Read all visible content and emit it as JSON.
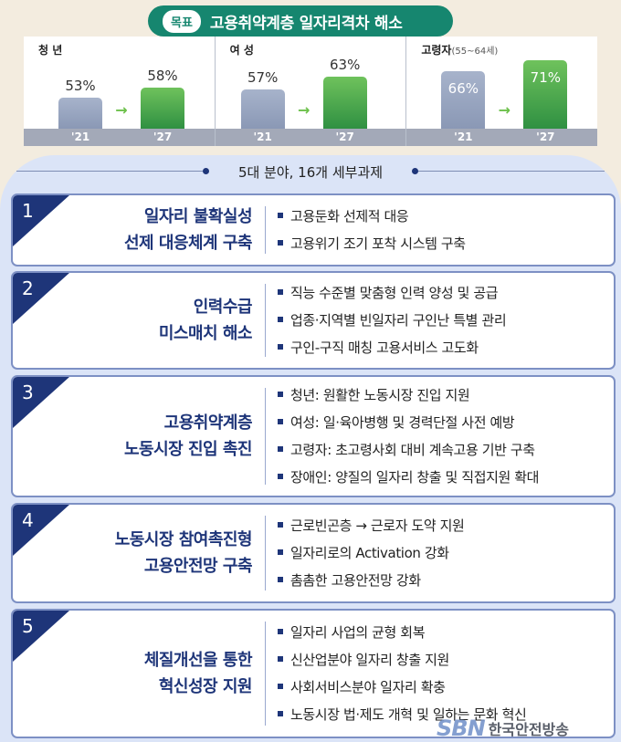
{
  "goal": {
    "tag": "목표",
    "title": "고용취약계층 일자리격차 해소"
  },
  "chart_data": [
    {
      "type": "bar",
      "title": "청 년",
      "title_sub": "",
      "categories": [
        "'21",
        "'27"
      ],
      "values": [
        53,
        58
      ],
      "value_labels": [
        "53%",
        "58%"
      ],
      "ylim": [
        0,
        100
      ],
      "colors": [
        "#97a4c0",
        "#45a34a"
      ]
    },
    {
      "type": "bar",
      "title": "여 성",
      "title_sub": "",
      "categories": [
        "'21",
        "'27"
      ],
      "values": [
        57,
        63
      ],
      "value_labels": [
        "57%",
        "63%"
      ],
      "ylim": [
        0,
        100
      ],
      "colors": [
        "#97a4c0",
        "#45a34a"
      ]
    },
    {
      "type": "bar",
      "title": "고령자",
      "title_sub": "(55~64세)",
      "categories": [
        "'21",
        "'27"
      ],
      "values": [
        66,
        71
      ],
      "value_labels": [
        "66%",
        "71%"
      ],
      "ylim": [
        0,
        100
      ],
      "colors": [
        "#97a4c0",
        "#45a34a"
      ]
    }
  ],
  "subtitle": "5대 분야, 16개 세부과제",
  "areas": [
    {
      "num": "1",
      "title": [
        "일자리 불확실성",
        "선제 대응체계 구축"
      ],
      "items": [
        "고용둔화 선제적 대응",
        "고용위기 조기 포착 시스템 구축"
      ]
    },
    {
      "num": "2",
      "title": [
        "인력수급",
        "미스매치 해소"
      ],
      "items": [
        "직능 수준별 맞춤형 인력 양성 및 공급",
        "업종·지역별 빈일자리 구인난 특별 관리",
        "구인-구직 매칭 고용서비스 고도화"
      ]
    },
    {
      "num": "3",
      "title": [
        "고용취약계층",
        "노동시장 진입 촉진"
      ],
      "items": [
        "청년: 원활한 노동시장 진입 지원",
        "여성: 일·육아병행 및 경력단절 사전 예방",
        "고령자: 초고령사회 대비 계속고용 기반 구축",
        "장애인: 양질의 일자리 창출 및 직접지원 확대"
      ]
    },
    {
      "num": "4",
      "title": [
        "노동시장 참여촉진형",
        "고용안전망 구축"
      ],
      "items": [
        "근로빈곤층 → 근로자 도약 지원",
        "일자리로의 Activation 강화",
        "촘촘한 고용안전망 강화"
      ]
    },
    {
      "num": "5",
      "title": [
        "체질개선을 통한",
        "혁신성장 지원"
      ],
      "items": [
        "일자리 사업의 균형 회복",
        "신산업분야 일자리 창출 지원",
        "사회서비스분야 일자리 확충",
        "노동시장 법·제도 개혁 및 일하는 문화 혁신"
      ]
    }
  ],
  "watermark": {
    "logo": "SBN",
    "text": "한국안전방송"
  }
}
